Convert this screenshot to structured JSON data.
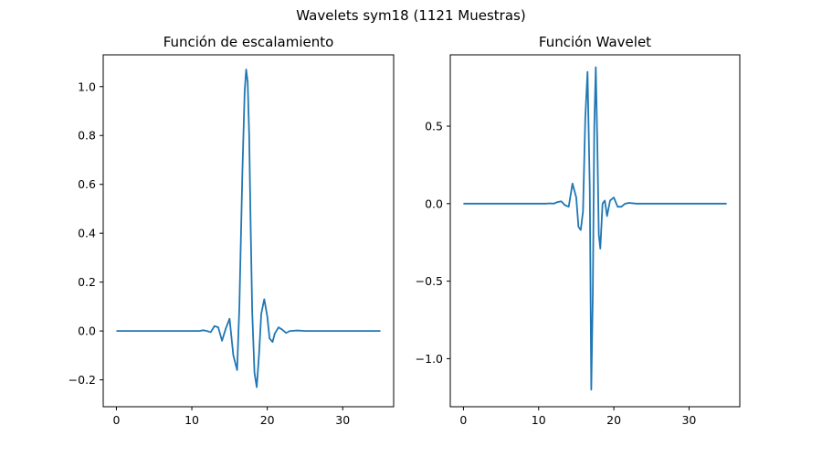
{
  "figure": {
    "suptitle": "Wavelets sym18 (1121 Muestras)"
  },
  "chart_data": [
    {
      "type": "line",
      "title": "Función de escalamiento",
      "xlabel": "",
      "ylabel": "",
      "xlim": [
        -1.75,
        36.75
      ],
      "ylim": [
        -0.31,
        1.13
      ],
      "x_ticks": [
        0,
        10,
        20,
        30
      ],
      "x_tick_labels": [
        "0",
        "10",
        "20",
        "30"
      ],
      "y_ticks": [
        -0.2,
        0.0,
        0.2,
        0.4,
        0.6,
        0.8,
        1.0
      ],
      "y_tick_labels": [
        "−0.2",
        "0.0",
        "0.2",
        "0.4",
        "0.6",
        "0.8",
        "1.0"
      ],
      "grid": false,
      "series": [
        {
          "color": "#1f77b4",
          "x": [
            0,
            10,
            11,
            11.5,
            12,
            12.5,
            13,
            13.5,
            14,
            14.5,
            15,
            15.5,
            16,
            16.3,
            16.7,
            17,
            17.2,
            17.4,
            17.6,
            17.8,
            18,
            18.3,
            18.6,
            18.9,
            19.2,
            19.6,
            20,
            20.3,
            20.7,
            21,
            21.5,
            22,
            22.5,
            23,
            24,
            25,
            35
          ],
          "y": [
            0,
            0,
            0,
            0.003,
            0.0,
            -0.005,
            0.02,
            0.015,
            -0.04,
            0.01,
            0.05,
            -0.1,
            -0.16,
            0.1,
            0.65,
            0.98,
            1.07,
            1.02,
            0.8,
            0.42,
            0.08,
            -0.17,
            -0.23,
            -0.1,
            0.07,
            0.13,
            0.06,
            -0.03,
            -0.045,
            -0.01,
            0.015,
            0.005,
            -0.008,
            0.0,
            0.002,
            0,
            0
          ]
        }
      ]
    },
    {
      "type": "line",
      "title": "Función Wavelet",
      "xlabel": "",
      "ylabel": "",
      "xlim": [
        -1.75,
        36.75
      ],
      "ylim": [
        -1.31,
        0.96
      ],
      "x_ticks": [
        0,
        10,
        20,
        30
      ],
      "x_tick_labels": [
        "0",
        "10",
        "20",
        "30"
      ],
      "y_ticks": [
        -1.0,
        -0.5,
        0.0,
        0.5
      ],
      "y_tick_labels": [
        "−1.0",
        "−0.5",
        "0.0",
        "0.5"
      ],
      "grid": false,
      "series": [
        {
          "color": "#1f77b4",
          "x": [
            0,
            10,
            11,
            11.5,
            12,
            12.5,
            13,
            13.5,
            14,
            14.5,
            15,
            15.3,
            15.6,
            15.9,
            16.2,
            16.5,
            16.8,
            17.0,
            17.2,
            17.4,
            17.6,
            17.8,
            18.0,
            18.2,
            18.5,
            18.8,
            19.1,
            19.5,
            20,
            20.5,
            21,
            21.5,
            22,
            23,
            24,
            35
          ],
          "y": [
            0,
            0,
            0,
            0.002,
            0.0,
            0.01,
            0.015,
            -0.01,
            -0.02,
            0.13,
            0.04,
            -0.15,
            -0.17,
            -0.05,
            0.55,
            0.85,
            0.1,
            -1.2,
            -0.6,
            0.5,
            0.88,
            0.4,
            -0.2,
            -0.29,
            0.0,
            0.02,
            -0.08,
            0.02,
            0.04,
            -0.02,
            -0.02,
            0.0,
            0.005,
            0.0,
            0,
            0
          ]
        }
      ]
    }
  ]
}
